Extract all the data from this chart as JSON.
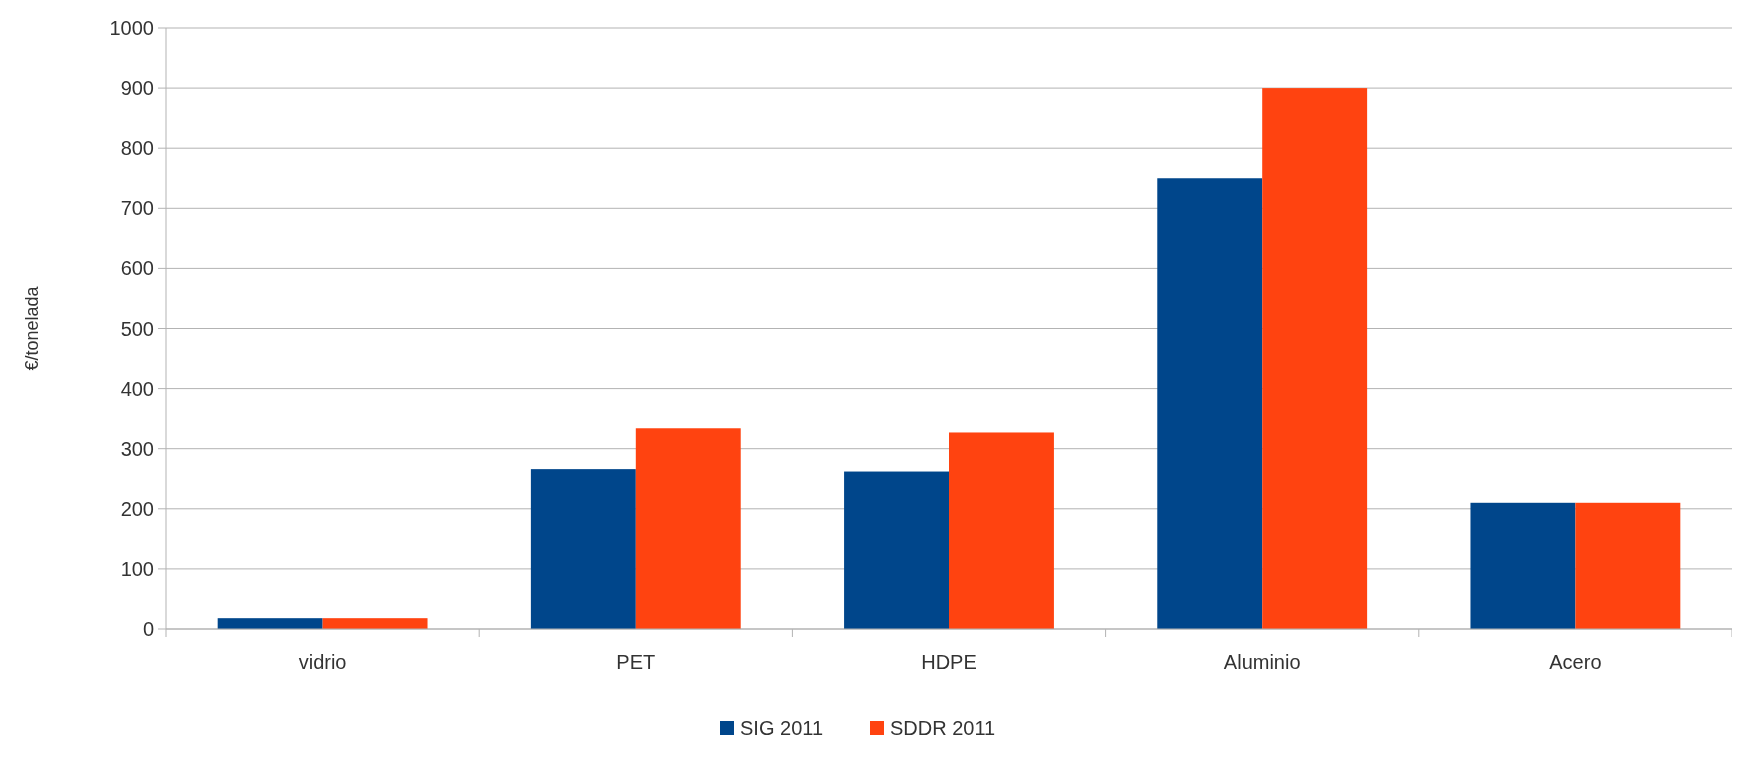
{
  "chart_data": {
    "type": "bar",
    "ylabel": "€/tonelada",
    "categories": [
      "vidrio",
      "PET",
      "HDPE",
      "Aluminio",
      "Acero"
    ],
    "series": [
      {
        "name": "SIG 2011",
        "color": "#00468b",
        "values": [
          18,
          266,
          262,
          750,
          210
        ]
      },
      {
        "name": "SDDR 2011",
        "color": "#ff4310",
        "values": [
          18,
          334,
          327,
          900,
          210
        ]
      }
    ],
    "ylim": [
      0,
      1000
    ],
    "yticks": [
      0,
      100,
      200,
      300,
      400,
      500,
      600,
      700,
      800,
      900,
      1000
    ],
    "grid": "y",
    "legend": "bottom"
  }
}
